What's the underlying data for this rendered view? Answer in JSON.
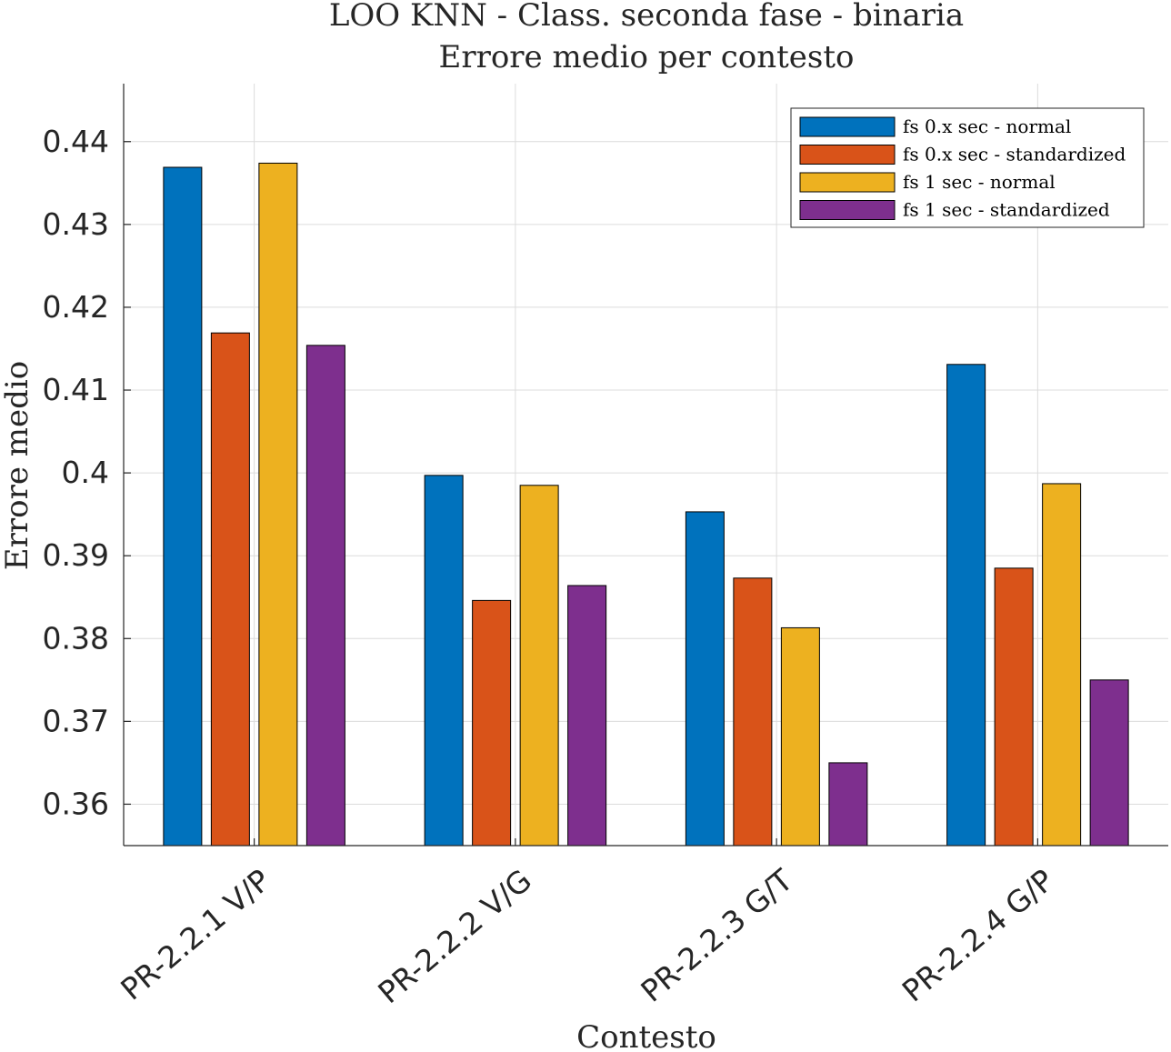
{
  "chart_data": {
    "type": "bar",
    "title": [
      "LOO KNN - Class. seconda fase - binaria",
      "Errore medio per contesto"
    ],
    "xlabel": "Contesto",
    "ylabel": "Errore medio",
    "ylim": [
      0.355,
      0.447
    ],
    "yticks": [
      "0.36",
      "0.37",
      "0.38",
      "0.39",
      "0.4",
      "0.41",
      "0.42",
      "0.43",
      "0.44"
    ],
    "ytick_values": [
      0.36,
      0.37,
      0.38,
      0.39,
      0.4,
      0.41,
      0.42,
      0.43,
      0.44
    ],
    "grid": true,
    "legend_position": "top-right",
    "categories": [
      "PR-2.2.1 V/P",
      "PR-2.2.2 V/G",
      "PR-2.2.3 G/T",
      "PR-2.2.4 G/P"
    ],
    "series": [
      {
        "name": "fs 0.x sec - normal",
        "color": "#0072BD",
        "values": [
          0.4369,
          0.3997,
          0.3953,
          0.4131
        ]
      },
      {
        "name": "fs 0.x sec - standardized",
        "color": "#D95319",
        "values": [
          0.4169,
          0.3846,
          0.3873,
          0.3885
        ]
      },
      {
        "name": "fs 1 sec - normal",
        "color": "#EDB120",
        "values": [
          0.4374,
          0.3985,
          0.3813,
          0.3987
        ]
      },
      {
        "name": "fs 1 sec - standardized",
        "color": "#7E2F8E",
        "values": [
          0.4154,
          0.3864,
          0.365,
          0.375
        ]
      }
    ]
  }
}
